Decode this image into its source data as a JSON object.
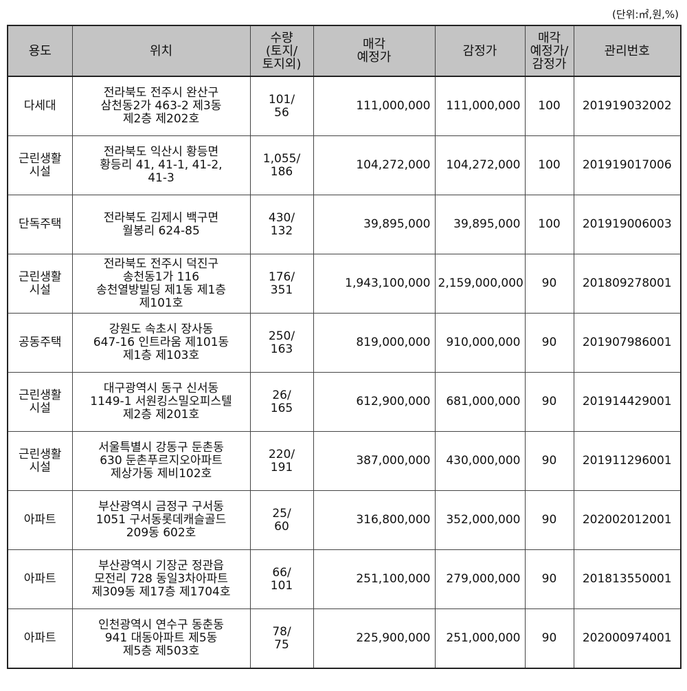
{
  "unit_note": "(단위:㎡,원,%)",
  "headers": [
    "용도",
    "위치",
    "수량\n(토지/\n토지외)",
    "매각\n예정가",
    "감정가",
    "매각\n예정가/\n감정가",
    "관리번호"
  ],
  "rows": [
    {
      "use": [
        "다세대"
      ],
      "location": [
        "전라북도 전주시  완산구",
        "삼천동2가 463-2 제3동",
        "제2층 제202호"
      ],
      "qty": [
        "101/",
        "56"
      ],
      "sale_price": "111,000,000",
      "appraisal": "111,000,000",
      "ratio": "100",
      "mgmt_no": "201919032002"
    },
    {
      "use": [
        "근린생활",
        "시설"
      ],
      "location": [
        "전라북도 익산시 황등면",
        "황등리 41, 41-1, 41-2,",
        "41-3"
      ],
      "qty": [
        "1,055/",
        "186"
      ],
      "sale_price": "104,272,000",
      "appraisal": "104,272,000",
      "ratio": "100",
      "mgmt_no": "201919017006"
    },
    {
      "use": [
        "단독주택"
      ],
      "location": [
        "전라북도 김제시 백구면",
        "월봉리 624-85"
      ],
      "qty": [
        "430/",
        "132"
      ],
      "sale_price": "39,895,000",
      "appraisal": "39,895,000",
      "ratio": "100",
      "mgmt_no": "201919006003"
    },
    {
      "use": [
        "근린생활",
        "시설"
      ],
      "location": [
        "전라북도 전주시 덕진구",
        "송천동1가 116",
        "송천열방빌딩 제1동 제1층",
        "제101호"
      ],
      "qty": [
        "176/",
        "351"
      ],
      "sale_price": "1,943,100,000",
      "appraisal": "2,159,000,000",
      "ratio": "90",
      "mgmt_no": "201809278001"
    },
    {
      "use": [
        "공동주택"
      ],
      "location": [
        "강원도 속초시 장사동",
        "647-16 인트라움 제101동",
        "제1층 제103호"
      ],
      "qty": [
        "250/",
        "163"
      ],
      "sale_price": "819,000,000",
      "appraisal": "910,000,000",
      "ratio": "90",
      "mgmt_no": "201907986001"
    },
    {
      "use": [
        "근린생활",
        "시설"
      ],
      "location": [
        "대구광역시 동구 신서동",
        "1149-1 서원킹스밀오피스텔",
        "제2층 제201호"
      ],
      "qty": [
        "26/",
        "165"
      ],
      "sale_price": "612,900,000",
      "appraisal": "681,000,000",
      "ratio": "90",
      "mgmt_no": "201914429001"
    },
    {
      "use": [
        "근린생활",
        "시설"
      ],
      "location": [
        "서울특별시 강동구 둔촌동",
        "630 둔촌푸르지오아파트",
        "제상가동 제비102호"
      ],
      "qty": [
        "220/",
        "191"
      ],
      "sale_price": "387,000,000",
      "appraisal": "430,000,000",
      "ratio": "90",
      "mgmt_no": "201911296001"
    },
    {
      "use": [
        "아파트"
      ],
      "location": [
        "부산광역시 금정구 구서동",
        "1051 구서동롯데캐슬골드",
        "209동 602호"
      ],
      "qty": [
        "25/",
        "60"
      ],
      "sale_price": "316,800,000",
      "appraisal": "352,000,000",
      "ratio": "90",
      "mgmt_no": "202002012001"
    },
    {
      "use": [
        "아파트"
      ],
      "location": [
        "부산광역시 기장군 정관읍",
        "모전리 728 동일3차아파트",
        "제309동 제17층 제1704호"
      ],
      "qty": [
        "66/",
        "101"
      ],
      "sale_price": "251,100,000",
      "appraisal": "279,000,000",
      "ratio": "90",
      "mgmt_no": "201813550001"
    },
    {
      "use": [
        "아파트"
      ],
      "location": [
        "인천광역시 연수구 동춘동",
        "941 대동아파트 제5동",
        "제5층 제503호"
      ],
      "qty": [
        "78/",
        "75"
      ],
      "sale_price": "225,900,000",
      "appraisal": "251,000,000",
      "ratio": "90",
      "mgmt_no": "202000974001"
    }
  ]
}
